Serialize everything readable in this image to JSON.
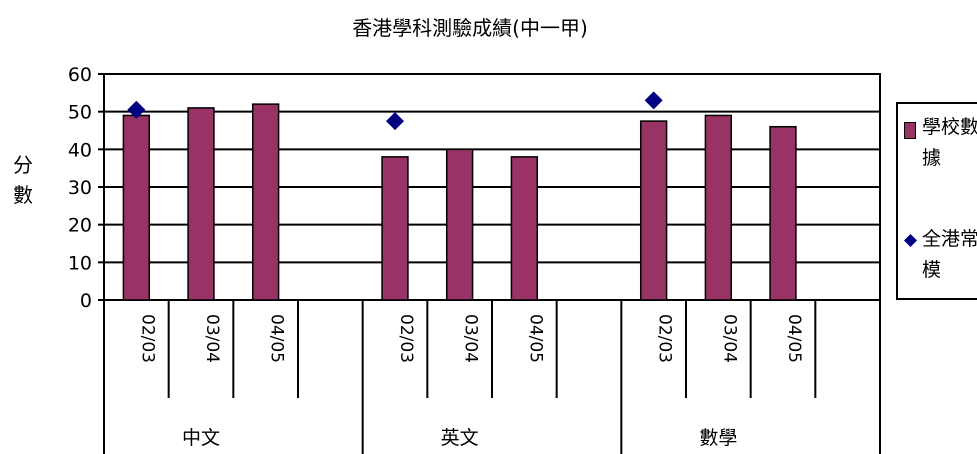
{
  "chart_data": {
    "type": "bar",
    "title": "香港學科測驗成績(中一甲)",
    "ylabel": "分數",
    "ylim": [
      0,
      60
    ],
    "yticks": [
      0,
      10,
      20,
      30,
      40,
      50,
      60
    ],
    "groups": [
      {
        "label": "中文",
        "categories": [
          "02/03",
          "03/04",
          "04/05"
        ]
      },
      {
        "label": "英文",
        "categories": [
          "02/03",
          "03/04",
          "04/05"
        ]
      },
      {
        "label": "數學",
        "categories": [
          "02/03",
          "03/04",
          "04/05"
        ]
      }
    ],
    "series": [
      {
        "name": "學校數據",
        "kind": "bar",
        "color": "#993366",
        "values": [
          [
            49,
            51,
            52
          ],
          [
            38,
            40,
            38
          ],
          [
            47.5,
            49,
            46
          ]
        ]
      },
      {
        "name": "全港常模",
        "kind": "marker",
        "color": "#000080",
        "values": [
          [
            50.5,
            null,
            null
          ],
          [
            47.5,
            null,
            null
          ],
          [
            53,
            null,
            null
          ]
        ]
      }
    ],
    "grid": true,
    "legend_position": "right"
  }
}
